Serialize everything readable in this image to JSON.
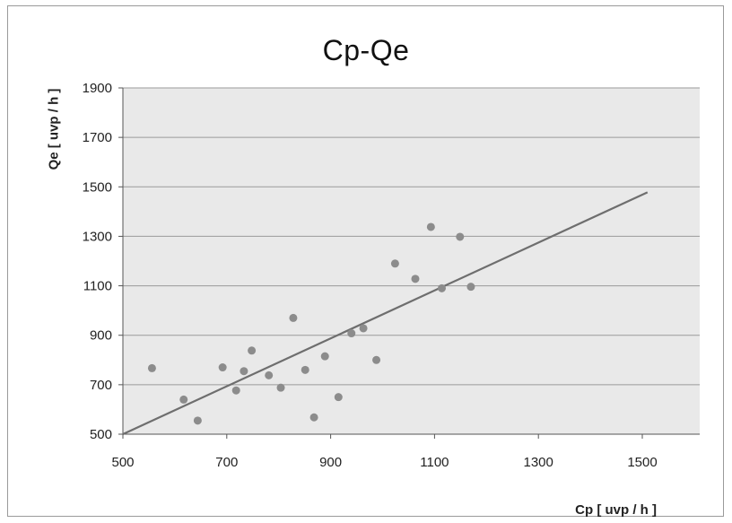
{
  "chart_data": {
    "type": "scatter",
    "title": "Cp-Qe",
    "xlabel": "Cp [ uvp / h ]",
    "ylabel": "Qe [ uvp / h ]",
    "xlim": [
      500,
      1500
    ],
    "ylim": [
      500,
      1900
    ],
    "xticks": [
      500,
      700,
      900,
      1100,
      1300,
      1500
    ],
    "yticks": [
      500,
      700,
      900,
      1100,
      1300,
      1500,
      1700,
      1900
    ],
    "grid": "horizontal",
    "legend": "none",
    "plot_background": "#e9e9e9",
    "point_color": "#8c8c8c",
    "line_color": "#6e6e6e",
    "series": [
      {
        "points": [
          {
            "x": 556,
            "y": 767
          },
          {
            "x": 617,
            "y": 640
          },
          {
            "x": 644,
            "y": 555
          },
          {
            "x": 692,
            "y": 770
          },
          {
            "x": 718,
            "y": 677
          },
          {
            "x": 733,
            "y": 755
          },
          {
            "x": 748,
            "y": 838
          },
          {
            "x": 781,
            "y": 738
          },
          {
            "x": 804,
            "y": 688
          },
          {
            "x": 828,
            "y": 970
          },
          {
            "x": 851,
            "y": 760
          },
          {
            "x": 868,
            "y": 568
          },
          {
            "x": 889,
            "y": 815
          },
          {
            "x": 915,
            "y": 650
          },
          {
            "x": 940,
            "y": 908
          },
          {
            "x": 963,
            "y": 928
          },
          {
            "x": 988,
            "y": 800
          },
          {
            "x": 1024,
            "y": 1190
          },
          {
            "x": 1063,
            "y": 1128
          },
          {
            "x": 1093,
            "y": 1338
          },
          {
            "x": 1114,
            "y": 1090
          },
          {
            "x": 1149,
            "y": 1298
          },
          {
            "x": 1170,
            "y": 1096
          }
        ]
      }
    ],
    "reference_line": {
      "type": "line",
      "points": [
        {
          "x": 500,
          "y": 500
        },
        {
          "x": 1510,
          "y": 1478
        }
      ]
    }
  }
}
